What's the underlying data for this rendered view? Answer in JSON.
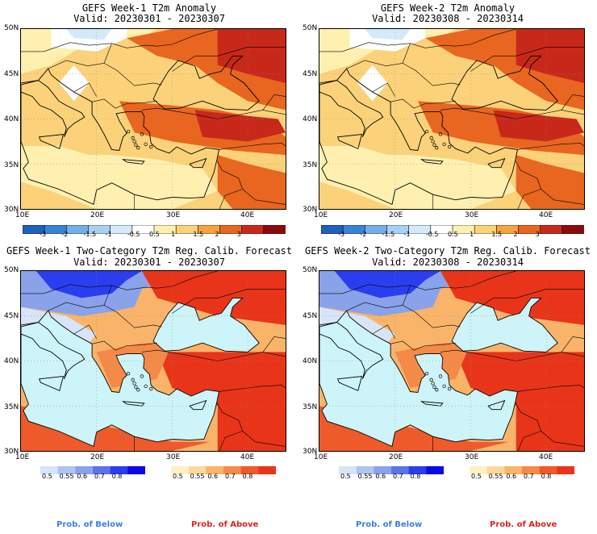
{
  "panels": [
    {
      "id": "p1",
      "type": "anomaly",
      "line1": "GEFS Week-1 T2m Anomaly",
      "line2": "Valid: 20230301 - 20230307"
    },
    {
      "id": "p2",
      "type": "anomaly",
      "line1": "GEFS Week-2 T2m Anomaly",
      "line2": "Valid: 20230308 - 20230314"
    },
    {
      "id": "p3",
      "type": "prob",
      "line1": "GEFS Week-1 Two-Category T2m Reg. Calib. Forecast",
      "line2": "Valid: 20230301 - 20230307"
    },
    {
      "id": "p4",
      "type": "prob",
      "line1": "GEFS Week-2 Two-Category T2m Reg. Calib. Forecast",
      "line2": "Valid: 20230308 - 20230314"
    }
  ],
  "axes": {
    "lat_labels": [
      "50N",
      "45N",
      "40N",
      "35N",
      "30N"
    ],
    "lon_labels": [
      "10E",
      "20E",
      "30E",
      "40E"
    ]
  },
  "anomaly_colorbar": {
    "labels": [
      "-3",
      "-2",
      "-1.5",
      "-1",
      "-0.5",
      "0.5",
      "1",
      "1.5",
      "2",
      "3"
    ],
    "colors": [
      "#1f5fbf",
      "#3a82d8",
      "#74aee8",
      "#a8d0f2",
      "#d4eafa",
      "#ffffff",
      "#fff0b0",
      "#fbd27a",
      "#f5a340",
      "#e8661f",
      "#c8281a",
      "#8c0a0a"
    ]
  },
  "prob_below_colorbar": {
    "labels": [
      "0.5",
      "0.55",
      "0.6",
      "0.7",
      "0.8"
    ],
    "colors": [
      "#d8e4f8",
      "#b0c4f0",
      "#8aa2ea",
      "#5a74e6",
      "#2a3ef0",
      "#0a0ae8"
    ]
  },
  "prob_above_colorbar": {
    "labels": [
      "0.5",
      "0.55",
      "0.6",
      "0.7",
      "0.8"
    ],
    "colors": [
      "#fff2c2",
      "#fdd89a",
      "#f9b46a",
      "#f48a48",
      "#ee5a2a",
      "#e8351a"
    ]
  },
  "footer": {
    "below_label": "Prob. of Below",
    "above_label": "Prob. of Above",
    "below_color": "#3a7ee0",
    "above_color": "#e02020"
  },
  "sea_color": "#cdf4f8"
}
